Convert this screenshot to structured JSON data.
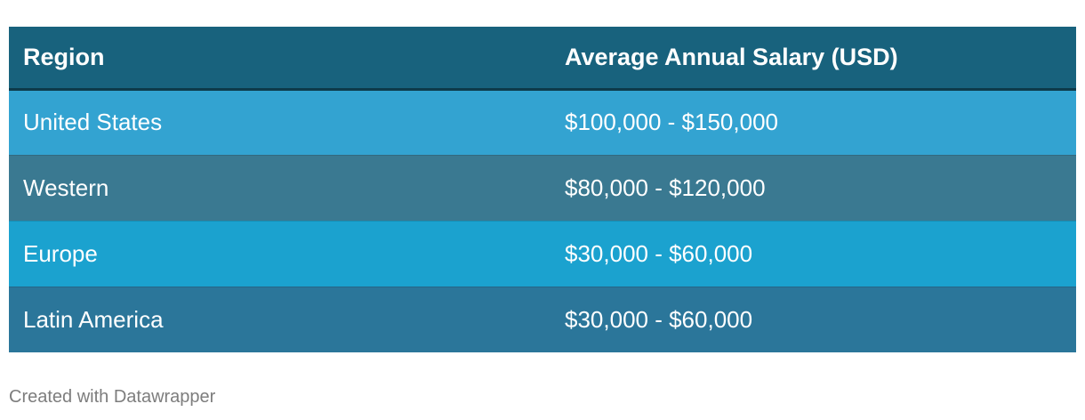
{
  "chart_data": {
    "type": "table",
    "columns": [
      "Region",
      "Average Annual Salary (USD)"
    ],
    "rows": [
      {
        "region": "United States",
        "salary": "$100,000 - $150,000",
        "color": "#33a3d1"
      },
      {
        "region": "Western",
        "salary": "$80,000 - $120,000",
        "color": "#3a7991"
      },
      {
        "region": "Europe",
        "salary": "$30,000 - $60,000",
        "color": "#1ba2cf"
      },
      {
        "region": "Latin America",
        "salary": "$30,000 - $60,000",
        "color": "#2b769a"
      }
    ],
    "header_color": "#18627d"
  },
  "footer": {
    "credit": "Created with Datawrapper"
  }
}
